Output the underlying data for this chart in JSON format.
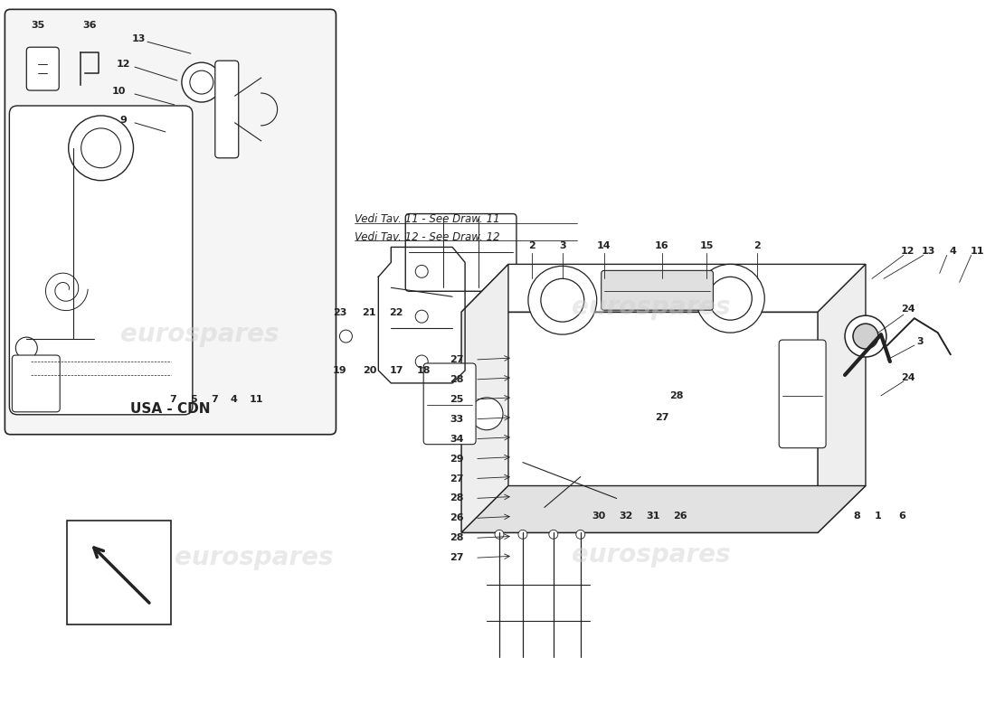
{
  "background_color": "#ffffff",
  "line_color": "#222222",
  "watermark_color": "#d0d0d0",
  "watermark_text": "eurospares",
  "note_text_line1": "Vedi Tav. 11 - See Draw. 11",
  "note_text_line2": "Vedi Tav. 12 - See Draw. 12",
  "usa_cdn_label": "USA - CDN"
}
